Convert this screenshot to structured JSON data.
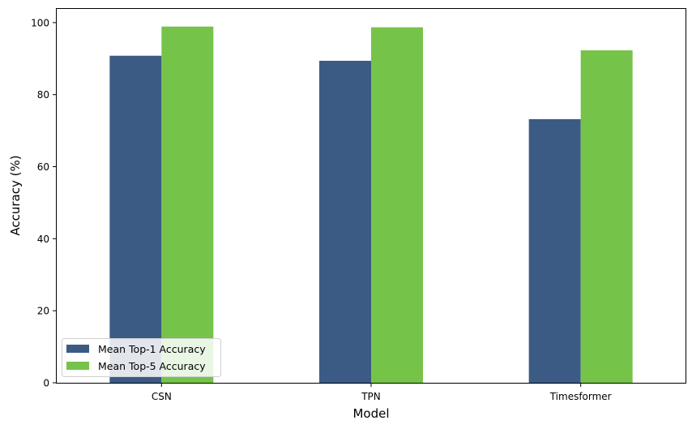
{
  "chart_data": {
    "type": "bar",
    "title": "",
    "xlabel": "Model",
    "ylabel": "Accuracy (%)",
    "categories": [
      "CSN",
      "TPN",
      "Timesformer"
    ],
    "series": [
      {
        "name": "Mean Top-1 Accuracy",
        "color": "#3b5b84",
        "values": [
          90.8,
          89.4,
          73.2
        ]
      },
      {
        "name": "Mean Top-5 Accuracy",
        "color": "#76c34a",
        "values": [
          98.9,
          98.7,
          92.3
        ]
      }
    ],
    "ylim": [
      0,
      103.8
    ],
    "yticks": [
      0,
      20,
      40,
      60,
      80,
      100
    ],
    "grid": false,
    "legend_position": "lower-left"
  }
}
